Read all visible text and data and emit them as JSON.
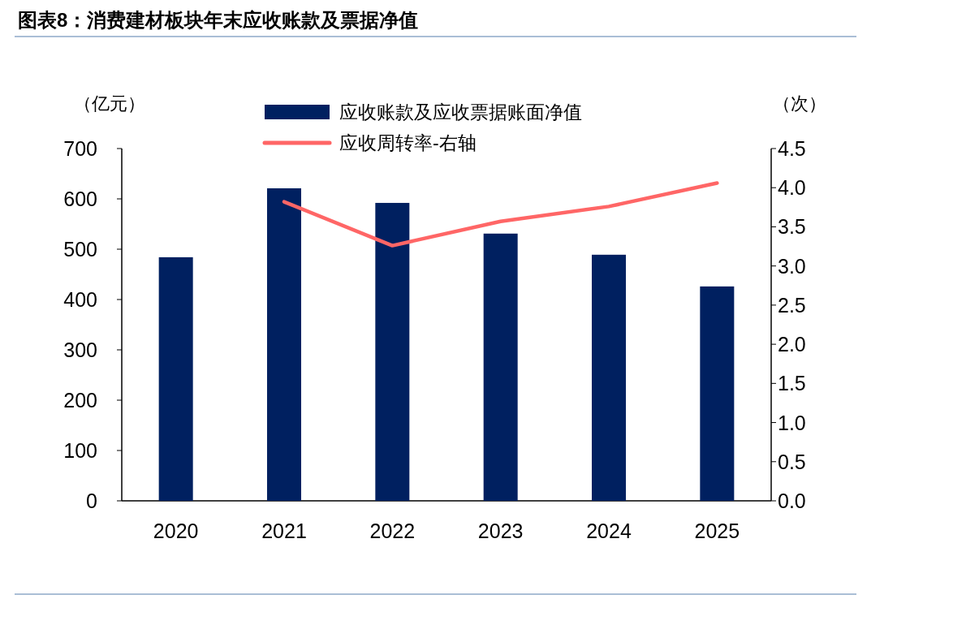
{
  "chart_data": {
    "type": "bar",
    "title": "图表8：消费建材板块年末应收账款及票据净值",
    "ylabel": "（亿元）",
    "y2label": "（次）",
    "categories": [
      "2020",
      "2021",
      "2022",
      "2023",
      "2024",
      "2025"
    ],
    "series": [
      {
        "name": "应收账款及应收票据账面净值",
        "color": "#002060",
        "values": [
          484,
          621,
          592,
          531,
          489,
          426
        ]
      },
      {
        "name": "应收周转率-右轴",
        "type": "line",
        "axis": "y2",
        "color": "#ff6666",
        "values": [
          null,
          3.82,
          3.26,
          3.57,
          3.76,
          4.06
        ]
      }
    ],
    "ylim": [
      0,
      700
    ],
    "yticks": [
      0,
      100,
      200,
      300,
      400,
      500,
      600,
      700
    ],
    "y2lim": [
      0,
      4.5
    ],
    "y2ticks": [
      {
        "value": 0,
        "label": "0.0"
      },
      {
        "value": 0.5,
        "label": "0.5"
      },
      {
        "value": 1,
        "label": "1.0"
      },
      {
        "value": 1.5,
        "label": "1.5"
      },
      {
        "value": 2,
        "label": "2.0"
      },
      {
        "value": 2.5,
        "label": "2.5"
      },
      {
        "value": 3,
        "label": "3.0"
      },
      {
        "value": 3.5,
        "label": "3.5"
      },
      {
        "value": 4,
        "label": "4.0"
      },
      {
        "value": 4.5,
        "label": "4.5"
      }
    ],
    "legend": "top",
    "grid": false
  }
}
